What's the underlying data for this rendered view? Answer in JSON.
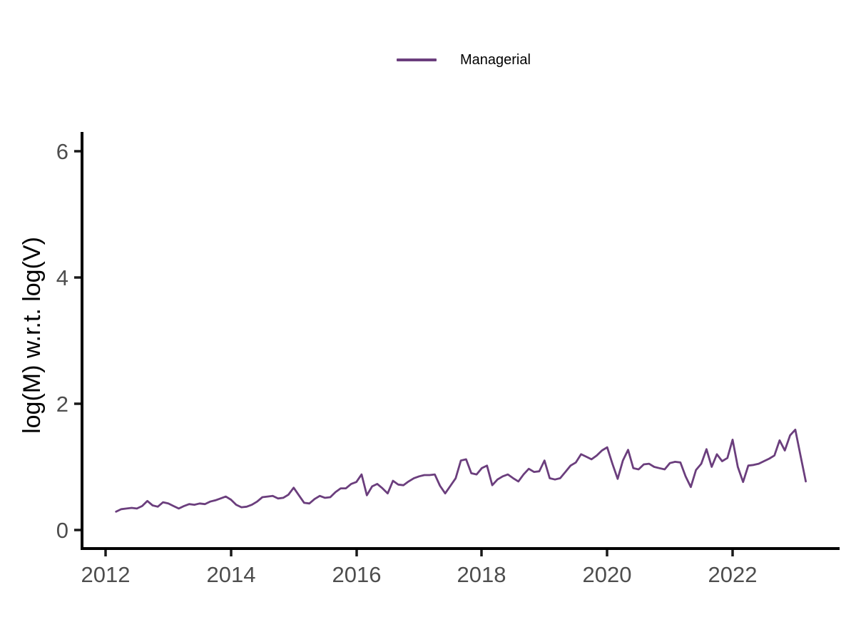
{
  "legend": {
    "items": [
      {
        "label": "Managerial",
        "color": "#6b3e7d"
      }
    ]
  },
  "axes": {
    "y_label": "log(M) w.r.t. log(V)",
    "x_tick_labels": [
      "2012",
      "2014",
      "2016",
      "2018",
      "2020",
      "2022"
    ],
    "y_tick_labels": [
      "0",
      "2",
      "4",
      "6"
    ]
  },
  "colors": {
    "line": "#6b3e7d",
    "tick_text": "#4d4d4d",
    "axis_line": "#000000",
    "background": "#ffffff"
  },
  "chart_data": {
    "type": "line",
    "title": "",
    "xlabel": "",
    "ylabel": "log(M) w.r.t. log(V)",
    "legend_position": "top-center",
    "grid": false,
    "x_ticks": [
      2012,
      2014,
      2016,
      2018,
      2020,
      2022
    ],
    "y_ticks": [
      0,
      2,
      4,
      6
    ],
    "xlim": [
      2011.6,
      2023.7
    ],
    "ylim": [
      -0.3,
      6.3
    ],
    "x": [
      2012.1667,
      2012.25,
      2012.3333,
      2012.4167,
      2012.5,
      2012.5833,
      2012.6667,
      2012.75,
      2012.8333,
      2012.9167,
      2013.0,
      2013.0833,
      2013.1667,
      2013.25,
      2013.3333,
      2013.4167,
      2013.5,
      2013.5833,
      2013.6667,
      2013.75,
      2013.8333,
      2013.9167,
      2014.0,
      2014.0833,
      2014.1667,
      2014.25,
      2014.3333,
      2014.4167,
      2014.5,
      2014.5833,
      2014.6667,
      2014.75,
      2014.8333,
      2014.9167,
      2015.0,
      2015.0833,
      2015.1667,
      2015.25,
      2015.3333,
      2015.4167,
      2015.5,
      2015.5833,
      2015.6667,
      2015.75,
      2015.8333,
      2015.9167,
      2016.0,
      2016.0833,
      2016.1667,
      2016.25,
      2016.3333,
      2016.4167,
      2016.5,
      2016.5833,
      2016.6667,
      2016.75,
      2016.8333,
      2016.9167,
      2017.0,
      2017.0833,
      2017.1667,
      2017.25,
      2017.3333,
      2017.4167,
      2017.5,
      2017.5833,
      2017.6667,
      2017.75,
      2017.8333,
      2017.9167,
      2018.0,
      2018.0833,
      2018.1667,
      2018.25,
      2018.3333,
      2018.4167,
      2018.5,
      2018.5833,
      2018.6667,
      2018.75,
      2018.8333,
      2018.9167,
      2019.0,
      2019.0833,
      2019.1667,
      2019.25,
      2019.3333,
      2019.4167,
      2019.5,
      2019.5833,
      2019.6667,
      2019.75,
      2019.8333,
      2019.9167,
      2020.0,
      2020.0833,
      2020.1667,
      2020.25,
      2020.3333,
      2020.4167,
      2020.5,
      2020.5833,
      2020.6667,
      2020.75,
      2020.8333,
      2020.9167,
      2021.0,
      2021.0833,
      2021.1667,
      2021.25,
      2021.3333,
      2021.4167,
      2021.5,
      2021.5833,
      2021.6667,
      2021.75,
      2021.8333,
      2021.9167,
      2022.0,
      2022.0833,
      2022.1667,
      2022.25,
      2022.3333,
      2022.4167,
      2022.5,
      2022.5833,
      2022.6667,
      2022.75,
      2022.8333,
      2022.9167,
      2023.0,
      2023.0833,
      2023.1667
    ],
    "series": [
      {
        "name": "Managerial",
        "color": "#6b3e7d",
        "values": [
          0.29,
          0.33,
          0.34,
          0.35,
          0.34,
          0.38,
          0.46,
          0.39,
          0.37,
          0.44,
          0.42,
          0.38,
          0.34,
          0.38,
          0.41,
          0.4,
          0.42,
          0.41,
          0.45,
          0.47,
          0.5,
          0.53,
          0.48,
          0.4,
          0.36,
          0.37,
          0.4,
          0.45,
          0.52,
          0.53,
          0.54,
          0.5,
          0.51,
          0.56,
          0.67,
          0.55,
          0.43,
          0.42,
          0.49,
          0.54,
          0.51,
          0.52,
          0.6,
          0.66,
          0.66,
          0.73,
          0.76,
          0.88,
          0.55,
          0.69,
          0.73,
          0.66,
          0.58,
          0.78,
          0.72,
          0.71,
          0.77,
          0.82,
          0.85,
          0.87,
          0.87,
          0.88,
          0.7,
          0.58,
          0.7,
          0.82,
          1.1,
          1.12,
          0.9,
          0.88,
          0.98,
          1.02,
          0.71,
          0.8,
          0.85,
          0.88,
          0.82,
          0.77,
          0.88,
          0.97,
          0.92,
          0.93,
          1.1,
          0.82,
          0.8,
          0.82,
          0.92,
          1.02,
          1.07,
          1.2,
          1.16,
          1.12,
          1.18,
          1.26,
          1.31,
          1.05,
          0.81,
          1.1,
          1.27,
          0.98,
          0.96,
          1.04,
          1.05,
          1.0,
          0.98,
          0.96,
          1.06,
          1.08,
          1.07,
          0.85,
          0.68,
          0.95,
          1.05,
          1.28,
          1.0,
          1.2,
          1.09,
          1.14,
          1.43,
          1.0,
          0.76,
          1.02,
          1.03,
          1.05,
          1.09,
          1.13,
          1.18,
          1.42,
          1.26,
          1.5,
          1.59,
          1.18,
          0.77
        ]
      }
    ]
  }
}
